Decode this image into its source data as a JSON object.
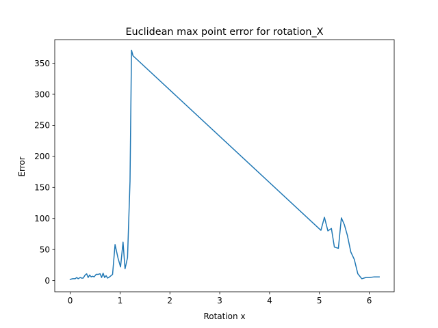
{
  "chart_data": {
    "type": "line",
    "title": "Euclidean max point error for rotation_X",
    "xlabel": "Rotation x",
    "ylabel": "Error",
    "xlim": [
      -0.31,
      6.5
    ],
    "ylim": [
      -18,
      388
    ],
    "xticks": [
      0,
      1,
      2,
      3,
      4,
      5,
      6
    ],
    "yticks": [
      0,
      50,
      100,
      150,
      200,
      250,
      300,
      350
    ],
    "grid": false,
    "line_color": "#1f77b4",
    "series": [
      {
        "x": [
          0.0,
          0.05,
          0.1,
          0.13,
          0.16,
          0.2,
          0.23,
          0.26,
          0.3,
          0.33,
          0.36,
          0.39,
          0.42,
          0.45,
          0.48,
          0.52,
          0.56,
          0.6,
          0.63,
          0.66,
          0.69,
          0.72,
          0.75,
          0.79,
          0.85,
          0.9,
          0.96,
          1.01,
          1.06,
          1.1,
          1.15,
          1.2,
          1.23,
          1.26,
          5.03,
          5.1,
          5.17,
          5.24,
          5.3,
          5.38,
          5.44,
          5.5,
          5.56,
          5.63,
          5.7,
          5.77,
          5.85,
          5.93,
          6.0,
          6.1,
          6.2
        ],
        "y": [
          2,
          3,
          3,
          5,
          3,
          5,
          4,
          4,
          9,
          11,
          5,
          9,
          6,
          7,
          6,
          10,
          10,
          11,
          5,
          12,
          5,
          8,
          4,
          6,
          10,
          58,
          36,
          22,
          62,
          19,
          37,
          160,
          371,
          362,
          81,
          102,
          80,
          84,
          54,
          52,
          101,
          90,
          73,
          46,
          34,
          11,
          3,
          5,
          5,
          6,
          6
        ]
      }
    ]
  }
}
